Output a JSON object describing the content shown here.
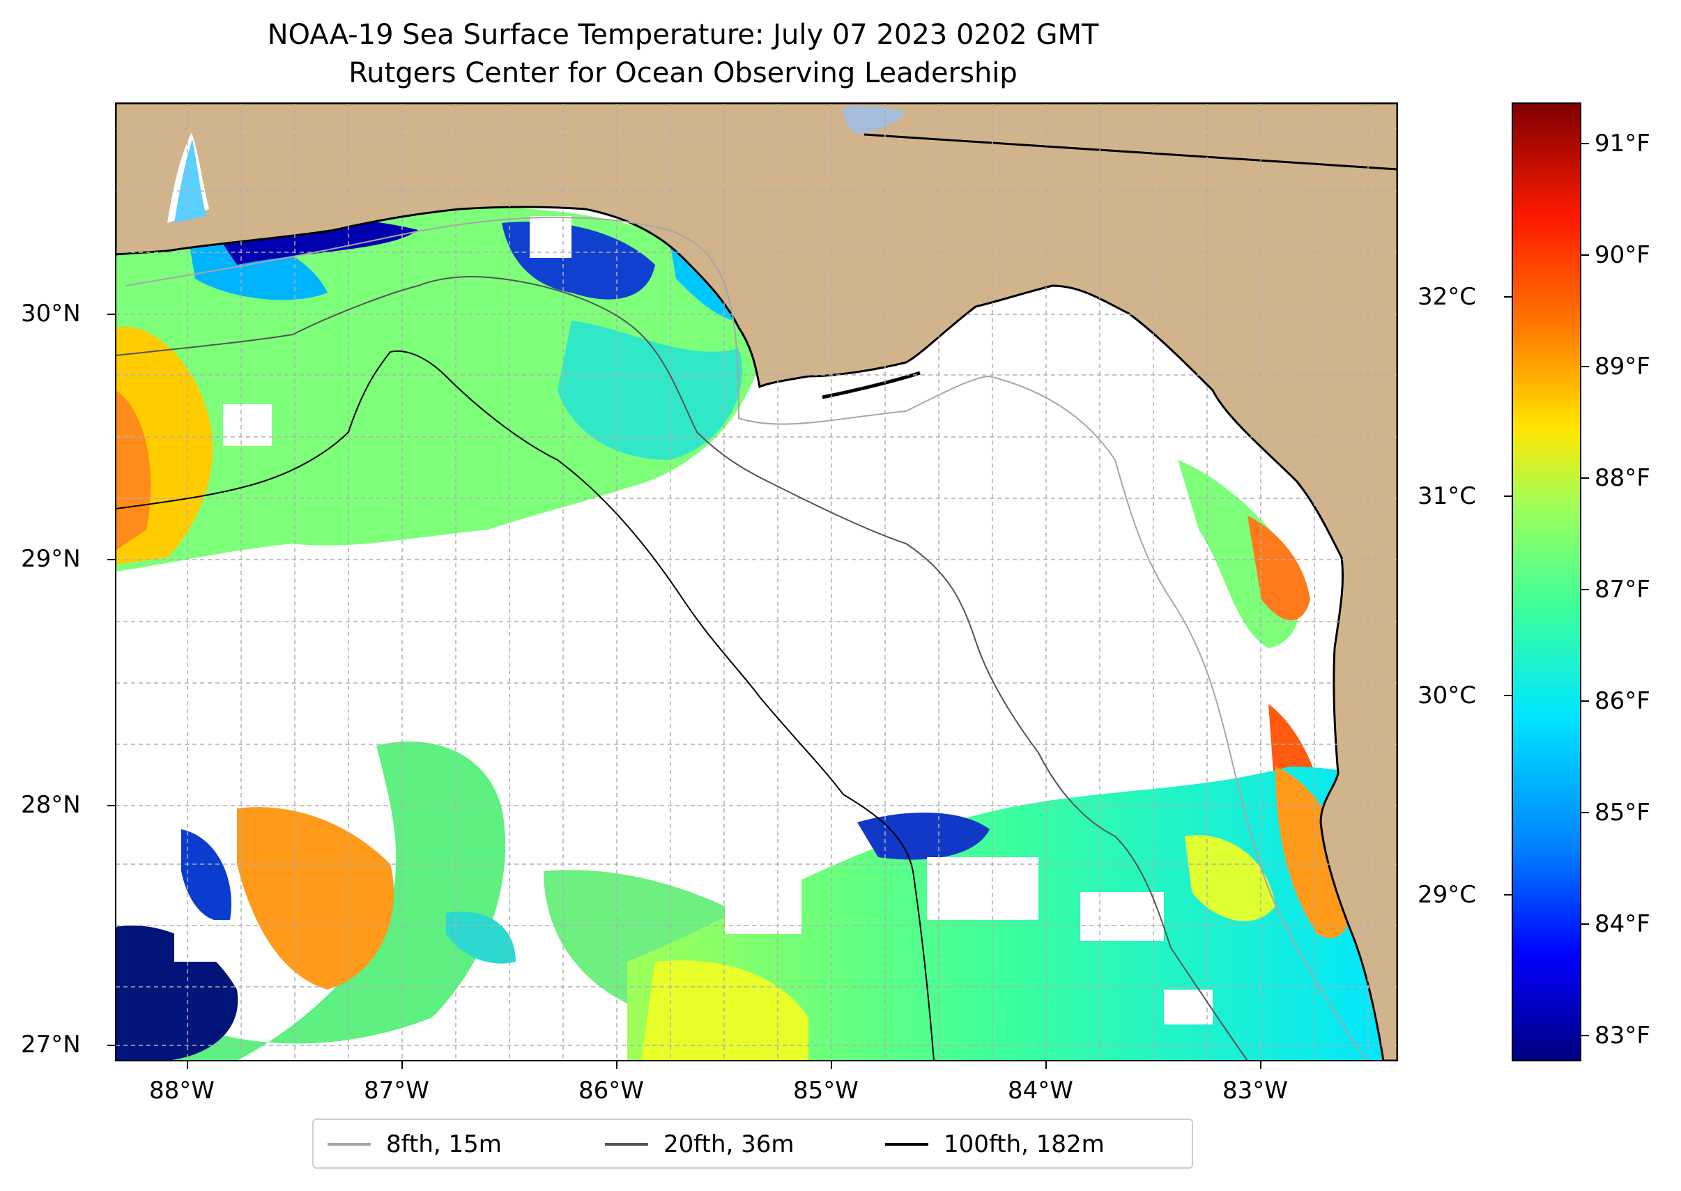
{
  "map": {
    "title": "NOAA-19 Sea Surface Temperature: July 07 2023 0202 GMT",
    "subtitle": "Rutgers Center for Ocean Observing Leadership",
    "longitude_labels": [
      "88°W",
      "87°W",
      "86°W",
      "85°W",
      "84°W",
      "83°W"
    ],
    "latitude_labels": [
      "30°N",
      "29°N",
      "28°N",
      "27°N"
    ],
    "colors": {
      "land": "#d2b48c",
      "water_body": "#a6bddb",
      "gridline": "#b0b0b0",
      "isobath_8fth": "#a6a6a6",
      "isobath_20fth": "#545454",
      "isobath_100fth": "#000000"
    }
  },
  "colorbar": {
    "fahrenheit_labels": [
      "91°F",
      "90°F",
      "89°F",
      "88°F",
      "87°F",
      "86°F",
      "85°F",
      "84°F",
      "83°F"
    ],
    "celsius_labels": [
      "32°C",
      "31°C",
      "30°C",
      "29°C"
    ],
    "gradient_stops": [
      "#00007f",
      "#0000ff",
      "#0080ff",
      "#00e5ff",
      "#3aff9e",
      "#a0ff57",
      "#ffe600",
      "#ff8000",
      "#ff1a00",
      "#7f0000"
    ]
  },
  "legend": {
    "items": [
      {
        "label": "8fth, 15m",
        "color": "#a6a6a6"
      },
      {
        "label": "20fth, 36m",
        "color": "#545454"
      },
      {
        "label": "100fth, 182m",
        "color": "#000000"
      }
    ]
  }
}
